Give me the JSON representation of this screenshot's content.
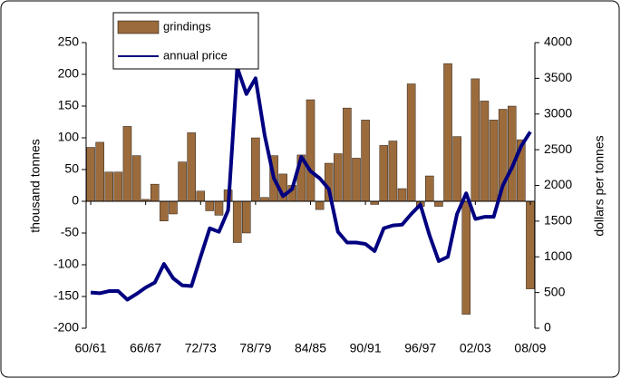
{
  "chart_data": {
    "type": "bar_line",
    "categories": [
      "60/61",
      null,
      null,
      null,
      null,
      null,
      "66/67",
      null,
      null,
      null,
      null,
      null,
      "72/73",
      null,
      null,
      null,
      null,
      null,
      "78/79",
      null,
      null,
      null,
      null,
      null,
      "84/85",
      null,
      null,
      null,
      null,
      null,
      "90/91",
      null,
      null,
      null,
      null,
      null,
      "96/97",
      null,
      null,
      null,
      null,
      null,
      "02/03",
      null,
      null,
      null,
      null,
      null,
      "08/09"
    ],
    "series": [
      {
        "name": "grindings",
        "type": "bar",
        "color": "#9c6b3c",
        "axis": "y",
        "values": [
          85,
          93,
          46,
          46,
          118,
          72,
          3,
          27,
          -31,
          -20,
          62,
          108,
          16,
          -15,
          -22,
          18,
          -65,
          -50,
          100,
          6,
          72,
          43,
          25,
          73,
          160,
          -13,
          60,
          75,
          147,
          68,
          128,
          -5,
          88,
          95,
          20,
          185,
          -8,
          40,
          -8,
          217,
          102,
          -178,
          193,
          158,
          128,
          145,
          150,
          97,
          -138
        ]
      },
      {
        "name": "annual price",
        "type": "line",
        "color": "#000080",
        "axis": "y2",
        "values": [
          500,
          490,
          520,
          520,
          400,
          480,
          570,
          640,
          900,
          700,
          600,
          590,
          1000,
          1400,
          1350,
          1650,
          3650,
          3280,
          3500,
          2700,
          2100,
          1850,
          1950,
          2400,
          2200,
          2100,
          1950,
          1350,
          1200,
          1200,
          1180,
          1080,
          1400,
          1440,
          1450,
          1600,
          1730,
          1300,
          940,
          1000,
          1600,
          1890,
          1530,
          1560,
          1560,
          2000,
          2250,
          2550,
          2750
        ]
      }
    ],
    "ylabel": "thousand tonnes",
    "y2label": "dollars per tonnes",
    "ylim": [
      -200,
      250
    ],
    "yticks": [
      -200,
      -150,
      -100,
      -50,
      0,
      50,
      100,
      150,
      200,
      250
    ],
    "y2lim": [
      0,
      4000
    ],
    "y2ticks": [
      0,
      500,
      1000,
      1500,
      2000,
      2500,
      3000,
      3500,
      4000
    ],
    "legend": "top-left"
  }
}
